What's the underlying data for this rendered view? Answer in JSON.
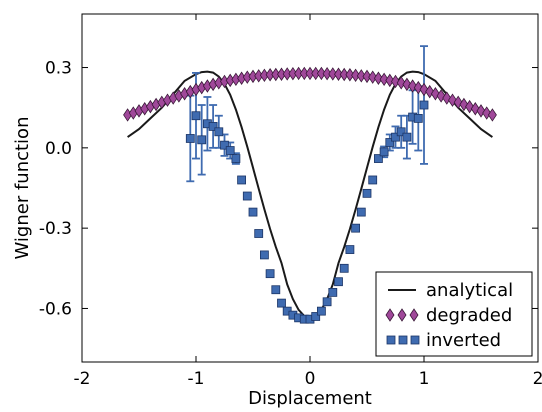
{
  "chart_data": {
    "type": "line",
    "xlabel": "Displacement",
    "ylabel": "Wigner function",
    "xlim": [
      -2.0,
      2.0
    ],
    "ylim": [
      -0.8,
      0.5
    ],
    "xticks": [
      {
        "value": -2,
        "label": "-2"
      },
      {
        "value": -1,
        "label": "-1"
      },
      {
        "value": 0,
        "label": "0"
      },
      {
        "value": 1,
        "label": "1"
      },
      {
        "value": 2,
        "label": "2"
      }
    ],
    "yticks": [
      {
        "value": 0.3,
        "label": "0.3"
      },
      {
        "value": 0.0,
        "label": "0.0"
      },
      {
        "value": -0.3,
        "label": "-0.3"
      },
      {
        "value": -0.6,
        "label": "-0.6"
      }
    ],
    "grid": false,
    "legend_position": "bottom-right",
    "colors": {
      "analytical": "#1a1a1a",
      "degraded_fill": "#a0489a",
      "degraded_edge": "#3a1838",
      "inverted_fill": "#3f6bb0",
      "inverted_edge": "#1c3566",
      "error_bar": "#3f6bb0"
    },
    "series": [
      {
        "name": "analytical",
        "kind": "line",
        "x": [
          -1.6,
          -1.5,
          -1.4,
          -1.3,
          -1.2,
          -1.1,
          -1.0,
          -0.95,
          -0.9,
          -0.85,
          -0.8,
          -0.75,
          -0.7,
          -0.65,
          -0.6,
          -0.55,
          -0.5,
          -0.45,
          -0.4,
          -0.35,
          -0.3,
          -0.25,
          -0.2,
          -0.15,
          -0.1,
          -0.05,
          0.0,
          0.05,
          0.1,
          0.15,
          0.2,
          0.25,
          0.3,
          0.35,
          0.4,
          0.45,
          0.5,
          0.55,
          0.6,
          0.65,
          0.7,
          0.75,
          0.8,
          0.85,
          0.9,
          0.95,
          1.0,
          1.1,
          1.2,
          1.3,
          1.4,
          1.5,
          1.6
        ],
        "y": [
          0.04,
          0.07,
          0.11,
          0.15,
          0.2,
          0.25,
          0.275,
          0.283,
          0.285,
          0.281,
          0.266,
          0.239,
          0.198,
          0.143,
          0.077,
          0.004,
          -0.074,
          -0.153,
          -0.23,
          -0.303,
          -0.37,
          -0.43,
          -0.51,
          -0.565,
          -0.605,
          -0.628,
          -0.636,
          -0.628,
          -0.605,
          -0.565,
          -0.51,
          -0.43,
          -0.37,
          -0.303,
          -0.23,
          -0.153,
          -0.074,
          0.004,
          0.077,
          0.143,
          0.198,
          0.239,
          0.266,
          0.281,
          0.285,
          0.283,
          0.275,
          0.25,
          0.2,
          0.15,
          0.11,
          0.07,
          0.04
        ]
      },
      {
        "name": "degraded",
        "kind": "diamond",
        "x": [
          -1.6,
          -1.55,
          -1.5,
          -1.45,
          -1.4,
          -1.35,
          -1.3,
          -1.25,
          -1.2,
          -1.15,
          -1.1,
          -1.05,
          -1.0,
          -0.95,
          -0.9,
          -0.85,
          -0.8,
          -0.75,
          -0.7,
          -0.65,
          -0.6,
          -0.55,
          -0.5,
          -0.45,
          -0.4,
          -0.35,
          -0.3,
          -0.25,
          -0.2,
          -0.15,
          -0.1,
          -0.05,
          0.0,
          0.05,
          0.1,
          0.15,
          0.2,
          0.25,
          0.3,
          0.35,
          0.4,
          0.45,
          0.5,
          0.55,
          0.6,
          0.65,
          0.7,
          0.75,
          0.8,
          0.85,
          0.9,
          0.95,
          1.0,
          1.05,
          1.1,
          1.15,
          1.2,
          1.25,
          1.3,
          1.35,
          1.4,
          1.45,
          1.5,
          1.55,
          1.6
        ],
        "y": [
          0.123,
          0.13,
          0.138,
          0.146,
          0.154,
          0.162,
          0.17,
          0.178,
          0.186,
          0.194,
          0.202,
          0.21,
          0.218,
          0.225,
          0.231,
          0.237,
          0.243,
          0.248,
          0.252,
          0.256,
          0.26,
          0.264,
          0.267,
          0.269,
          0.271,
          0.273,
          0.274,
          0.275,
          0.276,
          0.277,
          0.278,
          0.278,
          0.278,
          0.278,
          0.278,
          0.277,
          0.276,
          0.275,
          0.274,
          0.273,
          0.271,
          0.269,
          0.267,
          0.264,
          0.26,
          0.256,
          0.252,
          0.248,
          0.243,
          0.237,
          0.231,
          0.225,
          0.218,
          0.21,
          0.202,
          0.194,
          0.186,
          0.178,
          0.17,
          0.162,
          0.154,
          0.146,
          0.138,
          0.13,
          0.123
        ]
      },
      {
        "name": "inverted",
        "kind": "square",
        "x": [
          -1.05,
          -1.0,
          -0.95,
          -0.9,
          -0.85,
          -0.8,
          -0.75,
          -0.7,
          -0.65,
          -0.6,
          -0.55,
          -0.5,
          -0.45,
          -0.4,
          -0.35,
          -0.3,
          -0.25,
          -0.2,
          -0.15,
          -0.1,
          -0.05,
          0.0,
          0.05,
          0.1,
          0.15,
          0.2,
          0.25,
          0.3,
          0.35,
          0.4,
          0.45,
          0.5,
          0.55,
          0.6,
          0.65,
          0.7,
          0.75,
          0.8,
          0.85,
          0.9,
          0.95,
          1.0
        ],
        "y": [
          0.035,
          0.12,
          0.03,
          0.09,
          0.08,
          0.06,
          0.01,
          -0.01,
          -0.04,
          -0.12,
          -0.18,
          -0.24,
          -0.32,
          -0.4,
          -0.47,
          -0.53,
          -0.58,
          -0.61,
          -0.625,
          -0.635,
          -0.64,
          -0.64,
          -0.63,
          -0.61,
          -0.575,
          -0.54,
          -0.5,
          -0.45,
          -0.38,
          -0.3,
          -0.24,
          -0.17,
          -0.12,
          -0.04,
          -0.015,
          0.02,
          0.04,
          0.06,
          0.04,
          0.115,
          0.11,
          0.16
        ],
        "err": [
          0.16,
          0.16,
          0.13,
          0.1,
          0.08,
          0.06,
          0.04,
          0.03,
          0.02,
          0.0,
          0.0,
          0.0,
          0.0,
          0.0,
          0.0,
          0.0,
          0.0,
          0.0,
          0.0,
          0.0,
          0.0,
          0.0,
          0.0,
          0.0,
          0.0,
          0.0,
          0.0,
          0.0,
          0.0,
          0.0,
          0.0,
          0.0,
          0.0,
          0.0,
          0.02,
          0.03,
          0.04,
          0.06,
          0.08,
          0.1,
          0.12,
          0.22
        ]
      }
    ]
  }
}
